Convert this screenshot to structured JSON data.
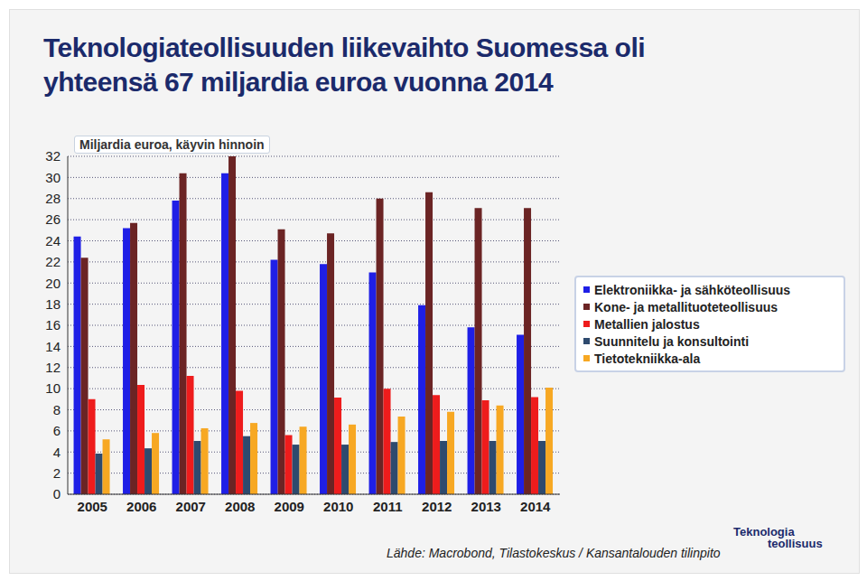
{
  "chart_data": {
    "type": "bar",
    "title": "Teknologiateollisuuden liikevaihto Suomessa oli\nyhteensä 67 miljardia euroa vuonna 2014",
    "subtitle": "Miljardia euroa, käyvin hinnoin",
    "source": "Lähde: Macrobond, Tilastokeskus / Kansantalouden tilinpito",
    "logo": [
      "Teknologia",
      "teollisuus"
    ],
    "categories": [
      "2005",
      "2006",
      "2007",
      "2008",
      "2009",
      "2010",
      "2011",
      "2012",
      "2013",
      "2014"
    ],
    "series": [
      {
        "name": "Elektroniikka- ja sähköteollisuus",
        "color": "#1f1fe6",
        "values": [
          24.4,
          25.2,
          27.8,
          30.4,
          22.2,
          21.8,
          21.0,
          17.9,
          15.8,
          15.1
        ]
      },
      {
        "name": "Kone- ja metallituoteteollisuus",
        "color": "#6b2424",
        "values": [
          22.4,
          25.7,
          30.4,
          32.0,
          25.1,
          24.7,
          28.0,
          28.6,
          27.1,
          27.1
        ]
      },
      {
        "name": "Metallien jalostus",
        "color": "#ee1c1c",
        "values": [
          9.0,
          10.35,
          11.2,
          9.8,
          5.6,
          9.15,
          10.0,
          9.4,
          8.9,
          9.2
        ]
      },
      {
        "name": "Suunnitelu ja konsultointi",
        "color": "#2e4a6e",
        "values": [
          3.85,
          4.35,
          5.05,
          5.5,
          4.7,
          4.7,
          4.95,
          5.05,
          5.05,
          5.05
        ]
      },
      {
        "name": "Tietotekniikka-ala",
        "color": "#f7a823",
        "values": [
          5.2,
          5.8,
          6.25,
          6.75,
          6.4,
          6.6,
          7.35,
          7.8,
          8.4,
          10.1
        ]
      }
    ],
    "ylim": [
      0,
      32
    ],
    "yticks": [
      0,
      2,
      4,
      6,
      8,
      10,
      12,
      14,
      16,
      18,
      20,
      22,
      24,
      26,
      28,
      30,
      32
    ],
    "grid": true,
    "legend": "right"
  }
}
